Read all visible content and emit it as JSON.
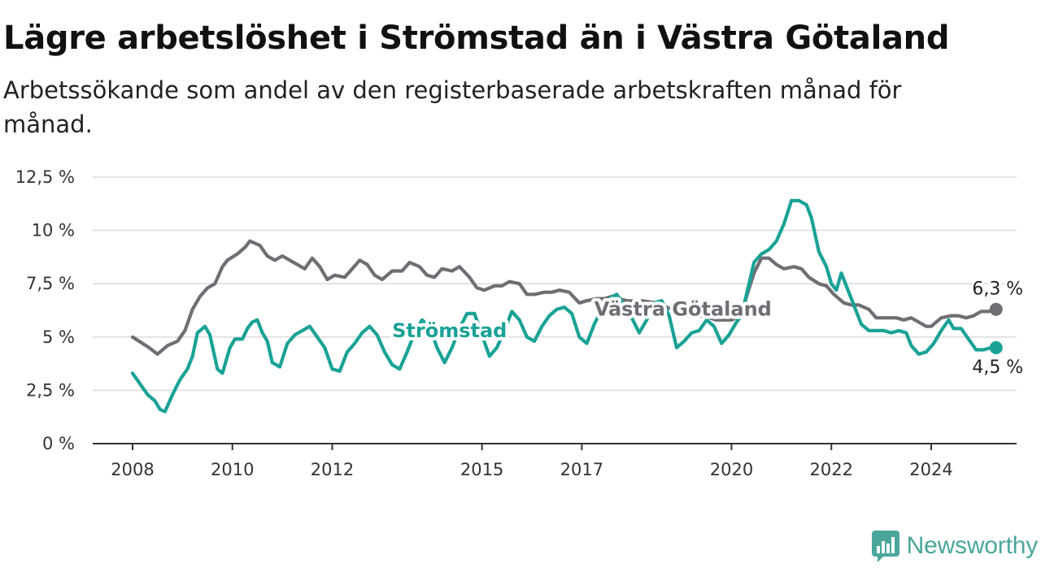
{
  "title": "Lägre arbetslöshet i Strömstad än i Västra Götaland",
  "subtitle": "Arbetssökande som andel av den registerbaserade arbetskraften månad för månad.",
  "brand": {
    "name": "Newsworthy",
    "color": "#4aa69a"
  },
  "chart_data": {
    "type": "line",
    "title": "Lägre arbetslöshet i Strömstad än i Västra Götaland",
    "subtitle": "Arbetssökande som andel av den registerbaserade arbetskraften månad för månad.",
    "xlabel": "",
    "ylabel": "",
    "xlim": [
      2008,
      2025.7
    ],
    "ylim": [
      0,
      12.5
    ],
    "x_ticks": [
      2008,
      2010,
      2012,
      2015,
      2017,
      2020,
      2022,
      2024
    ],
    "x_tick_labels": [
      "2008",
      "2010",
      "2012",
      "2015",
      "2017",
      "2020",
      "2022",
      "2024"
    ],
    "y_ticks": [
      0,
      2.5,
      5,
      7.5,
      10,
      12.5
    ],
    "y_tick_labels": [
      "0 %",
      "2,5 %",
      "5 %",
      "7,5 %",
      "10 %",
      "12,5 %"
    ],
    "grid": "horizontal",
    "legend": "direct labels",
    "series": [
      {
        "name": "Västra Götaland",
        "color": "#6f6e75",
        "end_label": "6,3 %",
        "points": [
          [
            2008.0,
            5.0
          ],
          [
            2008.2,
            4.7
          ],
          [
            2008.33,
            4.5
          ],
          [
            2008.5,
            4.2
          ],
          [
            2008.7,
            4.6
          ],
          [
            2008.9,
            4.8
          ],
          [
            2009.05,
            5.3
          ],
          [
            2009.2,
            6.3
          ],
          [
            2009.35,
            6.9
          ],
          [
            2009.5,
            7.3
          ],
          [
            2009.65,
            7.5
          ],
          [
            2009.8,
            8.3
          ],
          [
            2009.9,
            8.6
          ],
          [
            2010.1,
            8.9
          ],
          [
            2010.25,
            9.2
          ],
          [
            2010.35,
            9.5
          ],
          [
            2010.55,
            9.3
          ],
          [
            2010.7,
            8.8
          ],
          [
            2010.85,
            8.6
          ],
          [
            2011.0,
            8.8
          ],
          [
            2011.15,
            8.6
          ],
          [
            2011.3,
            8.4
          ],
          [
            2011.45,
            8.2
          ],
          [
            2011.6,
            8.7
          ],
          [
            2011.75,
            8.3
          ],
          [
            2011.9,
            7.7
          ],
          [
            2012.05,
            7.9
          ],
          [
            2012.25,
            7.8
          ],
          [
            2012.4,
            8.2
          ],
          [
            2012.55,
            8.6
          ],
          [
            2012.7,
            8.4
          ],
          [
            2012.85,
            7.9
          ],
          [
            2013.0,
            7.7
          ],
          [
            2013.2,
            8.1
          ],
          [
            2013.4,
            8.1
          ],
          [
            2013.55,
            8.5
          ],
          [
            2013.75,
            8.3
          ],
          [
            2013.9,
            7.9
          ],
          [
            2014.05,
            7.8
          ],
          [
            2014.2,
            8.2
          ],
          [
            2014.4,
            8.1
          ],
          [
            2014.55,
            8.3
          ],
          [
            2014.75,
            7.8
          ],
          [
            2014.9,
            7.3
          ],
          [
            2015.05,
            7.2
          ],
          [
            2015.25,
            7.4
          ],
          [
            2015.4,
            7.4
          ],
          [
            2015.55,
            7.6
          ],
          [
            2015.75,
            7.5
          ],
          [
            2015.9,
            7.0
          ],
          [
            2016.05,
            7.0
          ],
          [
            2016.25,
            7.1
          ],
          [
            2016.4,
            7.1
          ],
          [
            2016.55,
            7.2
          ],
          [
            2016.75,
            7.1
          ],
          [
            2016.95,
            6.6
          ],
          [
            2017.1,
            6.7
          ],
          [
            2017.3,
            6.8
          ],
          [
            2017.45,
            6.8
          ],
          [
            2017.6,
            6.9
          ],
          [
            2017.75,
            6.8
          ],
          [
            2017.9,
            6.7
          ],
          [
            2018.2,
            6.7
          ],
          [
            2018.5,
            6.6
          ],
          [
            2018.8,
            6.3
          ],
          [
            2019.1,
            6.0
          ],
          [
            2019.4,
            6.0
          ],
          [
            2019.7,
            5.8
          ],
          [
            2020.0,
            5.8
          ],
          [
            2020.2,
            6.0
          ],
          [
            2020.3,
            6.9
          ],
          [
            2020.45,
            8.0
          ],
          [
            2020.6,
            8.7
          ],
          [
            2020.75,
            8.7
          ],
          [
            2020.9,
            8.4
          ],
          [
            2021.05,
            8.2
          ],
          [
            2021.25,
            8.3
          ],
          [
            2021.4,
            8.2
          ],
          [
            2021.55,
            7.8
          ],
          [
            2021.75,
            7.5
          ],
          [
            2021.9,
            7.4
          ],
          [
            2022.05,
            7.0
          ],
          [
            2022.25,
            6.6
          ],
          [
            2022.4,
            6.5
          ],
          [
            2022.55,
            6.5
          ],
          [
            2022.75,
            6.3
          ],
          [
            2022.9,
            5.9
          ],
          [
            2023.1,
            5.9
          ],
          [
            2023.3,
            5.9
          ],
          [
            2023.45,
            5.8
          ],
          [
            2023.6,
            5.9
          ],
          [
            2023.75,
            5.7
          ],
          [
            2023.9,
            5.5
          ],
          [
            2024.0,
            5.5
          ],
          [
            2024.2,
            5.9
          ],
          [
            2024.4,
            6.0
          ],
          [
            2024.55,
            6.0
          ],
          [
            2024.7,
            5.9
          ],
          [
            2024.85,
            6.0
          ],
          [
            2025.0,
            6.2
          ],
          [
            2025.15,
            6.2
          ],
          [
            2025.3,
            6.3
          ]
        ]
      },
      {
        "name": "Strömstad",
        "color": "#1aa296",
        "end_label": "4,5 %",
        "points": [
          [
            2008.0,
            3.3
          ],
          [
            2008.15,
            2.8
          ],
          [
            2008.3,
            2.3
          ],
          [
            2008.45,
            2.0
          ],
          [
            2008.55,
            1.6
          ],
          [
            2008.65,
            1.5
          ],
          [
            2008.8,
            2.3
          ],
          [
            2008.95,
            3.0
          ],
          [
            2009.1,
            3.5
          ],
          [
            2009.2,
            4.1
          ],
          [
            2009.3,
            5.2
          ],
          [
            2009.45,
            5.5
          ],
          [
            2009.55,
            5.1
          ],
          [
            2009.7,
            3.5
          ],
          [
            2009.8,
            3.3
          ],
          [
            2009.95,
            4.5
          ],
          [
            2010.05,
            4.9
          ],
          [
            2010.2,
            4.9
          ],
          [
            2010.3,
            5.4
          ],
          [
            2010.4,
            5.7
          ],
          [
            2010.5,
            5.8
          ],
          [
            2010.6,
            5.2
          ],
          [
            2010.7,
            4.8
          ],
          [
            2010.8,
            3.8
          ],
          [
            2010.95,
            3.6
          ],
          [
            2011.1,
            4.7
          ],
          [
            2011.25,
            5.1
          ],
          [
            2011.4,
            5.3
          ],
          [
            2011.55,
            5.5
          ],
          [
            2011.7,
            5.0
          ],
          [
            2011.85,
            4.5
          ],
          [
            2012.0,
            3.5
          ],
          [
            2012.15,
            3.4
          ],
          [
            2012.3,
            4.3
          ],
          [
            2012.45,
            4.7
          ],
          [
            2012.6,
            5.2
          ],
          [
            2012.75,
            5.5
          ],
          [
            2012.9,
            5.1
          ],
          [
            2013.05,
            4.3
          ],
          [
            2013.2,
            3.7
          ],
          [
            2013.35,
            3.5
          ],
          [
            2013.5,
            4.3
          ],
          [
            2013.65,
            5.2
          ],
          [
            2013.8,
            5.8
          ],
          [
            2013.95,
            5.5
          ],
          [
            2014.1,
            4.5
          ],
          [
            2014.25,
            3.8
          ],
          [
            2014.4,
            4.5
          ],
          [
            2014.55,
            5.4
          ],
          [
            2014.7,
            6.1
          ],
          [
            2014.85,
            6.1
          ],
          [
            2015.0,
            5.1
          ],
          [
            2015.15,
            4.1
          ],
          [
            2015.3,
            4.5
          ],
          [
            2015.45,
            5.3
          ],
          [
            2015.6,
            6.2
          ],
          [
            2015.75,
            5.8
          ],
          [
            2015.9,
            5.0
          ],
          [
            2016.05,
            4.8
          ],
          [
            2016.2,
            5.5
          ],
          [
            2016.35,
            6.0
          ],
          [
            2016.5,
            6.3
          ],
          [
            2016.65,
            6.4
          ],
          [
            2016.8,
            6.1
          ],
          [
            2016.95,
            5.0
          ],
          [
            2017.1,
            4.7
          ],
          [
            2017.25,
            5.6
          ],
          [
            2017.4,
            6.3
          ],
          [
            2017.55,
            6.8
          ],
          [
            2017.7,
            7.0
          ],
          [
            2017.85,
            6.5
          ],
          [
            2018.0,
            5.9
          ],
          [
            2018.15,
            5.2
          ],
          [
            2018.3,
            5.8
          ],
          [
            2018.45,
            6.6
          ],
          [
            2018.6,
            6.7
          ],
          [
            2018.75,
            6.0
          ],
          [
            2018.9,
            4.5
          ],
          [
            2019.05,
            4.8
          ],
          [
            2019.2,
            5.2
          ],
          [
            2019.35,
            5.3
          ],
          [
            2019.5,
            5.8
          ],
          [
            2019.65,
            5.5
          ],
          [
            2019.8,
            4.7
          ],
          [
            2019.95,
            5.1
          ],
          [
            2020.1,
            5.7
          ],
          [
            2020.2,
            6.0
          ],
          [
            2020.3,
            7.0
          ],
          [
            2020.45,
            8.5
          ],
          [
            2020.6,
            8.9
          ],
          [
            2020.75,
            9.1
          ],
          [
            2020.9,
            9.5
          ],
          [
            2021.05,
            10.3
          ],
          [
            2021.2,
            11.4
          ],
          [
            2021.35,
            11.4
          ],
          [
            2021.5,
            11.2
          ],
          [
            2021.6,
            10.6
          ],
          [
            2021.75,
            9.0
          ],
          [
            2021.9,
            8.3
          ],
          [
            2022.0,
            7.5
          ],
          [
            2022.1,
            7.2
          ],
          [
            2022.2,
            8.0
          ],
          [
            2022.35,
            7.1
          ],
          [
            2022.5,
            6.2
          ],
          [
            2022.6,
            5.6
          ],
          [
            2022.75,
            5.3
          ],
          [
            2022.9,
            5.3
          ],
          [
            2023.05,
            5.3
          ],
          [
            2023.2,
            5.2
          ],
          [
            2023.35,
            5.3
          ],
          [
            2023.5,
            5.2
          ],
          [
            2023.6,
            4.6
          ],
          [
            2023.75,
            4.2
          ],
          [
            2023.9,
            4.3
          ],
          [
            2024.05,
            4.7
          ],
          [
            2024.2,
            5.3
          ],
          [
            2024.35,
            5.8
          ],
          [
            2024.45,
            5.4
          ],
          [
            2024.6,
            5.4
          ],
          [
            2024.75,
            4.9
          ],
          [
            2024.9,
            4.4
          ],
          [
            2025.05,
            4.4
          ],
          [
            2025.2,
            4.5
          ],
          [
            2025.3,
            4.5
          ]
        ]
      }
    ],
    "annotations": [
      {
        "series": "Strömstad",
        "text": "Strömstad",
        "x": 2013.2,
        "y": 5.3
      },
      {
        "series": "Västra Götaland",
        "text": "Västra Götaland",
        "x": 2017.25,
        "y": 6.3
      }
    ]
  }
}
